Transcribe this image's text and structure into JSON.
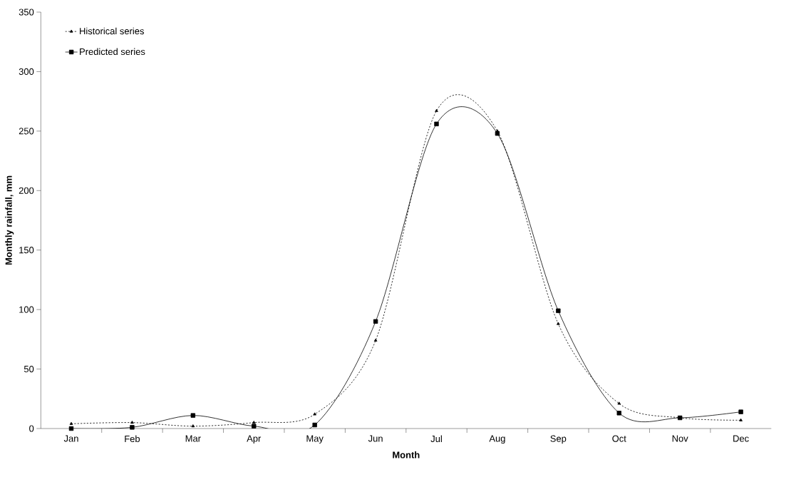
{
  "chart_data": {
    "type": "line",
    "xlabel": "Month",
    "ylabel": "Monthly rainfall, mm",
    "categories": [
      "Jan",
      "Feb",
      "Mar",
      "Apr",
      "May",
      "Jun",
      "Jul",
      "Aug",
      "Sep",
      "Oct",
      "Nov",
      "Dec"
    ],
    "series": [
      {
        "name": "Historical series",
        "color": "#000000",
        "line_style": "dotted",
        "marker": "triangle",
        "values": [
          4,
          5,
          2,
          5,
          12,
          74,
          267,
          250,
          88,
          21,
          9,
          7
        ]
      },
      {
        "name": "Predicted series",
        "color": "#000000",
        "line_style": "solid",
        "marker": "square",
        "values": [
          0,
          1,
          11,
          2,
          3,
          90,
          256,
          248,
          99,
          13,
          9,
          14
        ]
      }
    ],
    "ylim": [
      0,
      350
    ],
    "yticks": [
      0,
      50,
      100,
      150,
      200,
      250,
      300,
      350
    ],
    "grid": false,
    "legend": "top left"
  }
}
